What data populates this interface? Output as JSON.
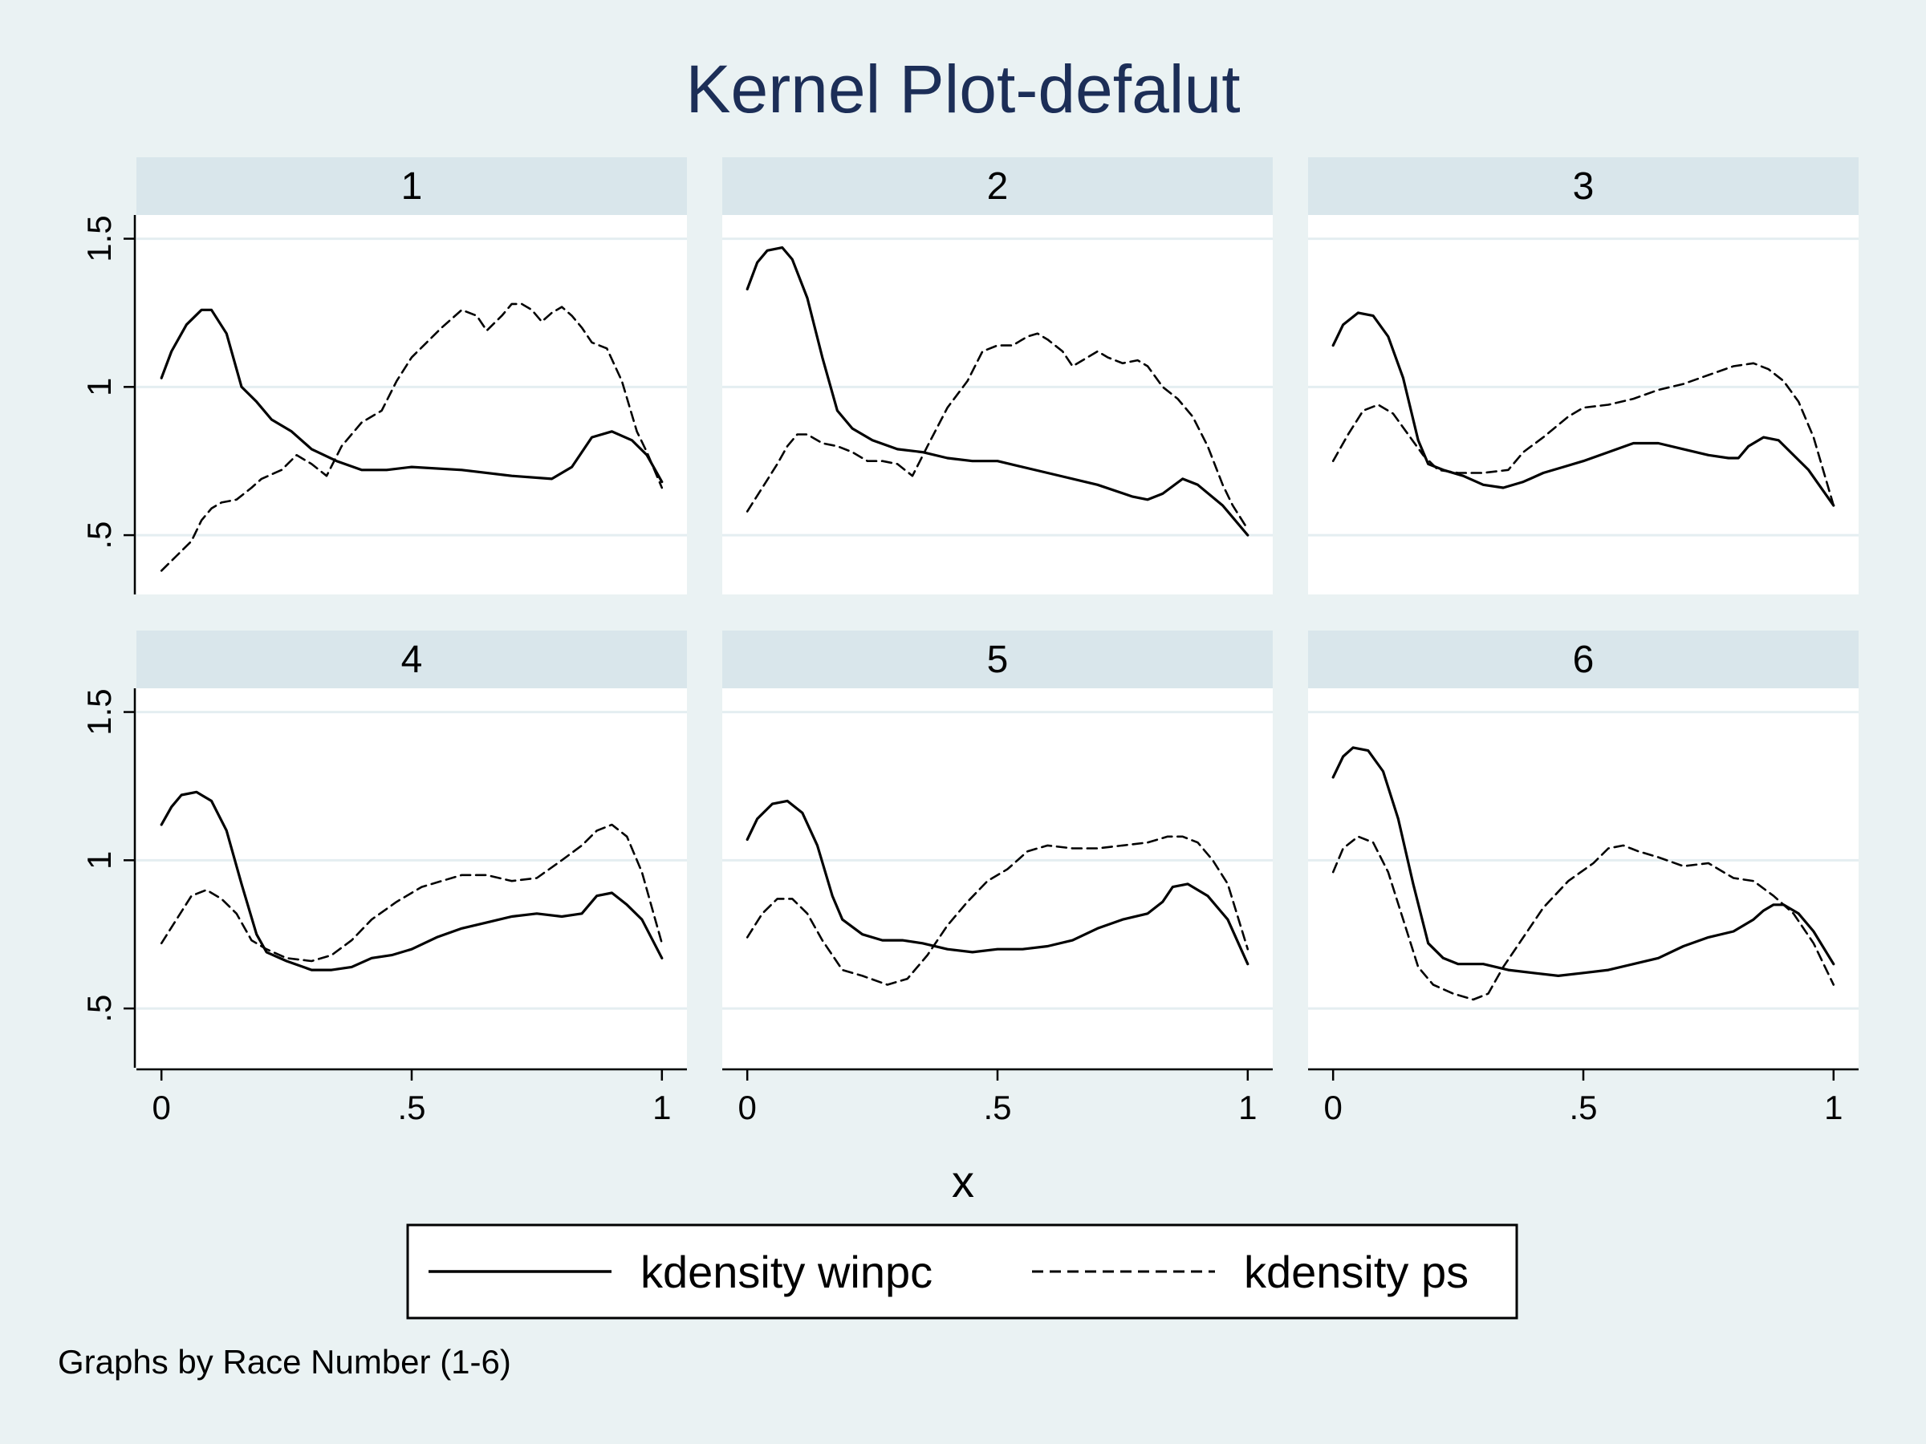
{
  "chart_data": {
    "type": "line",
    "title": "Kernel Plot-defalut",
    "xlabel": "x",
    "ylabel": "",
    "xlim": [
      -0.05,
      1.05
    ],
    "ylim": [
      0.3,
      1.58
    ],
    "x_ticks": [
      "0",
      ".5",
      "1"
    ],
    "x_tick_values": [
      0,
      0.5,
      1
    ],
    "y_ticks": [
      ".5",
      "1",
      "1.5"
    ],
    "y_tick_values": [
      0.5,
      1,
      1.5
    ],
    "grid": true,
    "legend_position": "bottom",
    "legend": [
      "kdensity winpc",
      "kdensity ps"
    ],
    "note": "Graphs by Race Number (1-6)",
    "panels": [
      {
        "label": "1",
        "series": [
          {
            "name": "kdensity winpc",
            "style": "solid",
            "x": [
              0,
              0.02,
              0.05,
              0.08,
              0.1,
              0.13,
              0.16,
              0.19,
              0.22,
              0.26,
              0.3,
              0.35,
              0.4,
              0.45,
              0.5,
              0.6,
              0.7,
              0.78,
              0.82,
              0.86,
              0.9,
              0.94,
              0.97,
              1.0
            ],
            "y": [
              1.03,
              1.12,
              1.21,
              1.26,
              1.26,
              1.18,
              1.0,
              0.95,
              0.89,
              0.85,
              0.79,
              0.75,
              0.72,
              0.72,
              0.73,
              0.72,
              0.7,
              0.69,
              0.73,
              0.83,
              0.85,
              0.82,
              0.77,
              0.68
            ]
          },
          {
            "name": "kdensity ps",
            "style": "dashed",
            "x": [
              0,
              0.03,
              0.06,
              0.08,
              0.1,
              0.12,
              0.15,
              0.18,
              0.2,
              0.24,
              0.27,
              0.3,
              0.33,
              0.36,
              0.4,
              0.44,
              0.47,
              0.5,
              0.53,
              0.56,
              0.6,
              0.63,
              0.65,
              0.68,
              0.7,
              0.72,
              0.74,
              0.76,
              0.78,
              0.8,
              0.82,
              0.84,
              0.86,
              0.89,
              0.92,
              0.95,
              0.97,
              1.0
            ],
            "y": [
              0.38,
              0.43,
              0.48,
              0.55,
              0.59,
              0.61,
              0.62,
              0.66,
              0.69,
              0.72,
              0.77,
              0.74,
              0.7,
              0.8,
              0.88,
              0.92,
              1.02,
              1.1,
              1.15,
              1.2,
              1.26,
              1.24,
              1.19,
              1.24,
              1.28,
              1.28,
              1.26,
              1.22,
              1.25,
              1.27,
              1.24,
              1.2,
              1.15,
              1.13,
              1.02,
              0.85,
              0.78,
              0.66
            ]
          }
        ]
      },
      {
        "label": "2",
        "series": [
          {
            "name": "kdensity winpc",
            "style": "solid",
            "x": [
              0,
              0.02,
              0.04,
              0.07,
              0.09,
              0.12,
              0.15,
              0.18,
              0.21,
              0.25,
              0.3,
              0.35,
              0.4,
              0.45,
              0.5,
              0.6,
              0.7,
              0.77,
              0.8,
              0.83,
              0.87,
              0.9,
              0.95,
              1.0
            ],
            "y": [
              1.33,
              1.42,
              1.46,
              1.47,
              1.43,
              1.3,
              1.1,
              0.92,
              0.86,
              0.82,
              0.79,
              0.78,
              0.76,
              0.75,
              0.75,
              0.71,
              0.67,
              0.63,
              0.62,
              0.64,
              0.69,
              0.67,
              0.6,
              0.5
            ]
          },
          {
            "name": "kdensity ps",
            "style": "dashed",
            "x": [
              0,
              0.03,
              0.06,
              0.08,
              0.1,
              0.12,
              0.15,
              0.18,
              0.21,
              0.24,
              0.27,
              0.3,
              0.33,
              0.36,
              0.4,
              0.44,
              0.47,
              0.5,
              0.53,
              0.56,
              0.58,
              0.6,
              0.63,
              0.65,
              0.68,
              0.7,
              0.72,
              0.75,
              0.78,
              0.8,
              0.83,
              0.86,
              0.89,
              0.92,
              0.95,
              0.97,
              1.0
            ],
            "y": [
              0.58,
              0.66,
              0.74,
              0.8,
              0.84,
              0.84,
              0.81,
              0.8,
              0.78,
              0.75,
              0.75,
              0.74,
              0.7,
              0.8,
              0.93,
              1.02,
              1.12,
              1.14,
              1.14,
              1.17,
              1.18,
              1.16,
              1.12,
              1.07,
              1.1,
              1.12,
              1.1,
              1.08,
              1.09,
              1.07,
              1.0,
              0.96,
              0.9,
              0.8,
              0.67,
              0.6,
              0.52
            ]
          }
        ]
      },
      {
        "label": "3",
        "series": [
          {
            "name": "kdensity winpc",
            "style": "solid",
            "x": [
              0,
              0.02,
              0.05,
              0.08,
              0.11,
              0.14,
              0.17,
              0.19,
              0.22,
              0.26,
              0.3,
              0.34,
              0.38,
              0.42,
              0.46,
              0.5,
              0.55,
              0.6,
              0.65,
              0.7,
              0.75,
              0.79,
              0.81,
              0.83,
              0.86,
              0.89,
              0.92,
              0.95,
              1.0
            ],
            "y": [
              1.14,
              1.21,
              1.25,
              1.24,
              1.17,
              1.03,
              0.82,
              0.74,
              0.72,
              0.7,
              0.67,
              0.66,
              0.68,
              0.71,
              0.73,
              0.75,
              0.78,
              0.81,
              0.81,
              0.79,
              0.77,
              0.76,
              0.76,
              0.8,
              0.83,
              0.82,
              0.77,
              0.72,
              0.6
            ]
          },
          {
            "name": "kdensity ps",
            "style": "dashed",
            "x": [
              0,
              0.03,
              0.06,
              0.09,
              0.12,
              0.15,
              0.18,
              0.21,
              0.25,
              0.3,
              0.35,
              0.38,
              0.42,
              0.47,
              0.5,
              0.55,
              0.6,
              0.65,
              0.7,
              0.75,
              0.8,
              0.84,
              0.87,
              0.9,
              0.93,
              0.96,
              1.0
            ],
            "y": [
              0.75,
              0.84,
              0.92,
              0.94,
              0.91,
              0.84,
              0.77,
              0.72,
              0.71,
              0.71,
              0.72,
              0.78,
              0.83,
              0.9,
              0.93,
              0.94,
              0.96,
              0.99,
              1.01,
              1.04,
              1.07,
              1.08,
              1.06,
              1.02,
              0.95,
              0.83,
              0.6
            ]
          }
        ]
      },
      {
        "label": "4",
        "series": [
          {
            "name": "kdensity winpc",
            "style": "solid",
            "x": [
              0,
              0.02,
              0.04,
              0.07,
              0.1,
              0.13,
              0.16,
              0.19,
              0.21,
              0.25,
              0.3,
              0.34,
              0.38,
              0.42,
              0.46,
              0.5,
              0.55,
              0.6,
              0.65,
              0.7,
              0.75,
              0.8,
              0.84,
              0.87,
              0.9,
              0.93,
              0.96,
              1.0
            ],
            "y": [
              1.12,
              1.18,
              1.22,
              1.23,
              1.2,
              1.1,
              0.92,
              0.75,
              0.69,
              0.66,
              0.63,
              0.63,
              0.64,
              0.67,
              0.68,
              0.7,
              0.74,
              0.77,
              0.79,
              0.81,
              0.82,
              0.81,
              0.82,
              0.88,
              0.89,
              0.85,
              0.8,
              0.67
            ]
          },
          {
            "name": "kdensity ps",
            "style": "dashed",
            "x": [
              0,
              0.03,
              0.06,
              0.09,
              0.12,
              0.15,
              0.18,
              0.21,
              0.25,
              0.3,
              0.34,
              0.38,
              0.42,
              0.47,
              0.52,
              0.56,
              0.6,
              0.65,
              0.7,
              0.75,
              0.8,
              0.84,
              0.87,
              0.9,
              0.93,
              0.96,
              1.0
            ],
            "y": [
              0.72,
              0.8,
              0.88,
              0.9,
              0.87,
              0.82,
              0.73,
              0.7,
              0.67,
              0.66,
              0.68,
              0.73,
              0.8,
              0.86,
              0.91,
              0.93,
              0.95,
              0.95,
              0.93,
              0.94,
              1.0,
              1.05,
              1.1,
              1.12,
              1.08,
              0.96,
              0.72
            ]
          }
        ]
      },
      {
        "label": "5",
        "series": [
          {
            "name": "kdensity winpc",
            "style": "solid",
            "x": [
              0,
              0.02,
              0.05,
              0.08,
              0.11,
              0.14,
              0.17,
              0.19,
              0.23,
              0.27,
              0.31,
              0.35,
              0.4,
              0.45,
              0.5,
              0.55,
              0.6,
              0.65,
              0.7,
              0.75,
              0.8,
              0.83,
              0.85,
              0.88,
              0.92,
              0.96,
              1.0
            ],
            "y": [
              1.07,
              1.14,
              1.19,
              1.2,
              1.16,
              1.05,
              0.88,
              0.8,
              0.75,
              0.73,
              0.73,
              0.72,
              0.7,
              0.69,
              0.7,
              0.7,
              0.71,
              0.73,
              0.77,
              0.8,
              0.82,
              0.86,
              0.91,
              0.92,
              0.88,
              0.8,
              0.65
            ]
          },
          {
            "name": "kdensity ps",
            "style": "dashed",
            "x": [
              0,
              0.03,
              0.06,
              0.09,
              0.12,
              0.15,
              0.19,
              0.23,
              0.28,
              0.32,
              0.36,
              0.4,
              0.44,
              0.48,
              0.52,
              0.56,
              0.6,
              0.65,
              0.7,
              0.75,
              0.8,
              0.84,
              0.87,
              0.9,
              0.93,
              0.96,
              1.0
            ],
            "y": [
              0.74,
              0.82,
              0.87,
              0.87,
              0.82,
              0.73,
              0.63,
              0.61,
              0.58,
              0.6,
              0.68,
              0.78,
              0.86,
              0.93,
              0.97,
              1.03,
              1.05,
              1.04,
              1.04,
              1.05,
              1.06,
              1.08,
              1.08,
              1.06,
              1.0,
              0.92,
              0.7
            ]
          }
        ]
      },
      {
        "label": "6",
        "series": [
          {
            "name": "kdensity winpc",
            "style": "solid",
            "x": [
              0,
              0.02,
              0.04,
              0.07,
              0.1,
              0.13,
              0.16,
              0.19,
              0.22,
              0.25,
              0.3,
              0.35,
              0.4,
              0.45,
              0.5,
              0.55,
              0.6,
              0.65,
              0.7,
              0.75,
              0.8,
              0.84,
              0.86,
              0.88,
              0.9,
              0.93,
              0.96,
              1.0
            ],
            "y": [
              1.28,
              1.35,
              1.38,
              1.37,
              1.3,
              1.14,
              0.92,
              0.72,
              0.67,
              0.65,
              0.65,
              0.63,
              0.62,
              0.61,
              0.62,
              0.63,
              0.65,
              0.67,
              0.71,
              0.74,
              0.76,
              0.8,
              0.83,
              0.85,
              0.85,
              0.82,
              0.76,
              0.65
            ]
          },
          {
            "name": "kdensity ps",
            "style": "dashed",
            "x": [
              0,
              0.02,
              0.05,
              0.08,
              0.11,
              0.14,
              0.17,
              0.2,
              0.24,
              0.28,
              0.31,
              0.34,
              0.38,
              0.42,
              0.47,
              0.52,
              0.55,
              0.58,
              0.61,
              0.65,
              0.7,
              0.75,
              0.8,
              0.84,
              0.88,
              0.92,
              0.96,
              1.0
            ],
            "y": [
              0.96,
              1.04,
              1.08,
              1.06,
              0.96,
              0.8,
              0.64,
              0.58,
              0.55,
              0.53,
              0.55,
              0.64,
              0.74,
              0.84,
              0.93,
              0.99,
              1.04,
              1.05,
              1.03,
              1.01,
              0.98,
              0.99,
              0.94,
              0.93,
              0.88,
              0.82,
              0.72,
              0.58
            ]
          }
        ]
      }
    ]
  }
}
